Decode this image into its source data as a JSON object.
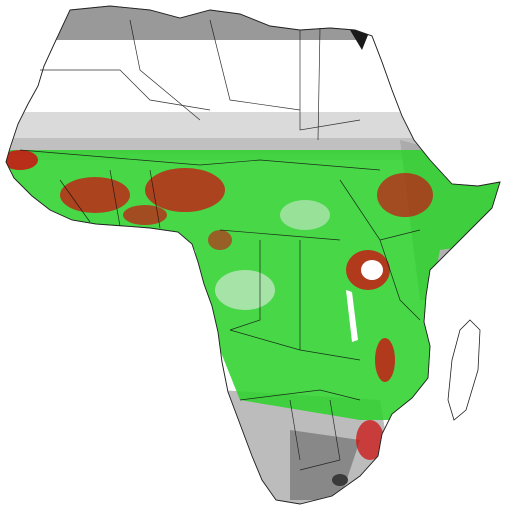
{
  "map": {
    "region": "Africa",
    "colors": {
      "background": "#ffffff",
      "low_gray_light": "#e8e8e8",
      "low_gray_mid": "#bdbdbd",
      "low_gray_dark": "#5a5a5a",
      "lake_black": "#1a1a1a",
      "green": "#22dd22",
      "red": "#cc1111",
      "border": "#111111"
    }
  }
}
